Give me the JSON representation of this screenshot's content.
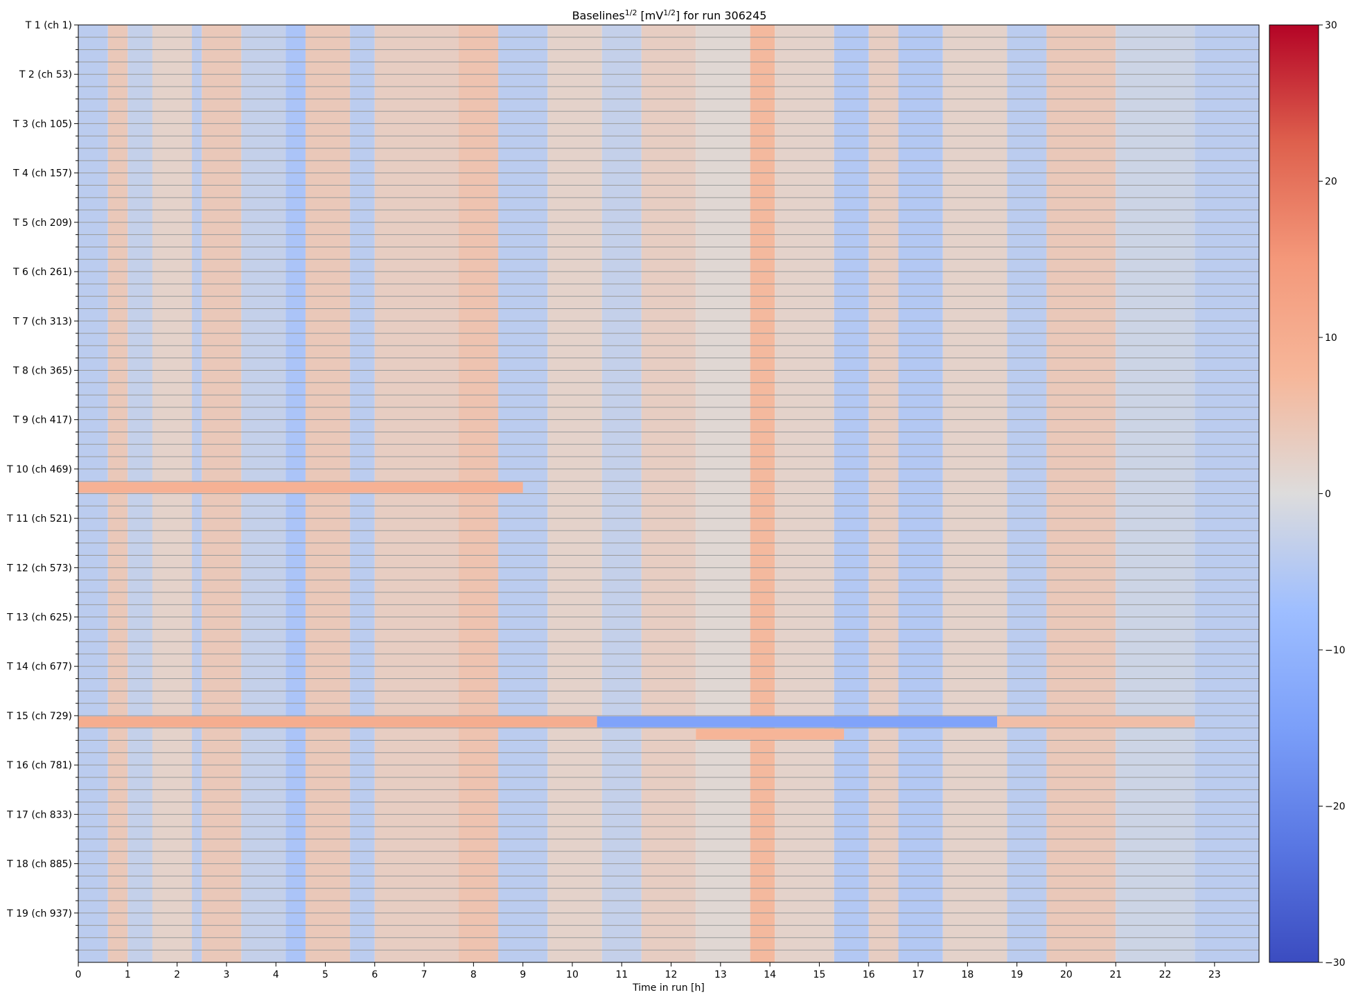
{
  "chart_data": {
    "type": "heatmap",
    "title": {
      "base": "Baselines",
      "sup1": "1/2",
      "mid": " [mV",
      "sup2": "1/2",
      "end": "] for run 306245"
    },
    "xlabel": "Time in run [h]",
    "ylabel": "",
    "xlim": [
      0,
      23.9
    ],
    "x_tick_labels": [
      "0",
      "1",
      "2",
      "3",
      "4",
      "5",
      "6",
      "7",
      "8",
      "9",
      "10",
      "11",
      "12",
      "13",
      "14",
      "15",
      "16",
      "17",
      "18",
      "19",
      "20",
      "21",
      "22",
      "23"
    ],
    "y_tick_labels": [
      "T 1 (ch 1)",
      "T 2 (ch 53)",
      "T 3 (ch 105)",
      "T 4 (ch 157)",
      "T 5 (ch 209)",
      "T 6 (ch 261)",
      "T 7 (ch 313)",
      "T 8 (ch 365)",
      "T 9 (ch 417)",
      "T 10 (ch 469)",
      "T 11 (ch 521)",
      "T 12 (ch 573)",
      "T 13 (ch 625)",
      "T 14 (ch 677)",
      "T 15 (ch 729)",
      "T 16 (ch 781)",
      "T 17 (ch 833)",
      "T 18 (ch 885)",
      "T 19 (ch 937)"
    ],
    "rows_total": 76,
    "minor_ticks_per_major": 4,
    "colormap": "coolwarm",
    "colorbar": {
      "vmin": -30,
      "vmax": 30,
      "tick_labels": [
        "30",
        "20",
        "10",
        "0",
        "−10",
        "−20",
        "−30"
      ],
      "tick_values": [
        30,
        20,
        10,
        0,
        -10,
        -20,
        -30
      ]
    },
    "column_pattern_hours": [
      {
        "from": 0.0,
        "to": 0.6,
        "value": -4
      },
      {
        "from": 0.6,
        "to": 1.0,
        "value": 4
      },
      {
        "from": 1.0,
        "to": 1.5,
        "value": -3
      },
      {
        "from": 1.5,
        "to": 2.3,
        "value": 2
      },
      {
        "from": 2.3,
        "to": 2.5,
        "value": -4
      },
      {
        "from": 2.5,
        "to": 3.3,
        "value": 4
      },
      {
        "from": 3.3,
        "to": 4.2,
        "value": -3
      },
      {
        "from": 4.2,
        "to": 4.6,
        "value": -6
      },
      {
        "from": 4.6,
        "to": 5.5,
        "value": 4
      },
      {
        "from": 5.5,
        "to": 6.0,
        "value": -4
      },
      {
        "from": 6.0,
        "to": 7.7,
        "value": 3
      },
      {
        "from": 7.7,
        "to": 8.5,
        "value": 5
      },
      {
        "from": 8.5,
        "to": 9.5,
        "value": -4
      },
      {
        "from": 9.5,
        "to": 10.6,
        "value": 2
      },
      {
        "from": 10.6,
        "to": 11.4,
        "value": -3
      },
      {
        "from": 11.4,
        "to": 12.5,
        "value": 3
      },
      {
        "from": 12.5,
        "to": 13.6,
        "value": 1
      },
      {
        "from": 13.6,
        "to": 14.1,
        "value": 7
      },
      {
        "from": 14.1,
        "to": 15.3,
        "value": 2
      },
      {
        "from": 15.3,
        "to": 16.0,
        "value": -5
      },
      {
        "from": 16.0,
        "to": 16.6,
        "value": 3
      },
      {
        "from": 16.6,
        "to": 17.5,
        "value": -5
      },
      {
        "from": 17.5,
        "to": 18.8,
        "value": 2
      },
      {
        "from": 18.8,
        "to": 19.6,
        "value": -4
      },
      {
        "from": 19.6,
        "to": 21.0,
        "value": 4
      },
      {
        "from": 21.0,
        "to": 22.6,
        "value": -2
      },
      {
        "from": 22.6,
        "to": 23.9,
        "value": -4
      }
    ],
    "row_anomalies": [
      {
        "row": 56,
        "from": 0.0,
        "to": 10.5,
        "value": 10
      },
      {
        "row": 56,
        "from": 10.5,
        "to": 18.6,
        "value": -14
      },
      {
        "row": 56,
        "from": 18.6,
        "to": 22.6,
        "value": 6
      },
      {
        "row": 37,
        "from": 0.0,
        "to": 9.0,
        "value": 9
      },
      {
        "row": 57,
        "from": 12.5,
        "to": 15.5,
        "value": 8
      }
    ],
    "grid": true,
    "legend": "none"
  }
}
